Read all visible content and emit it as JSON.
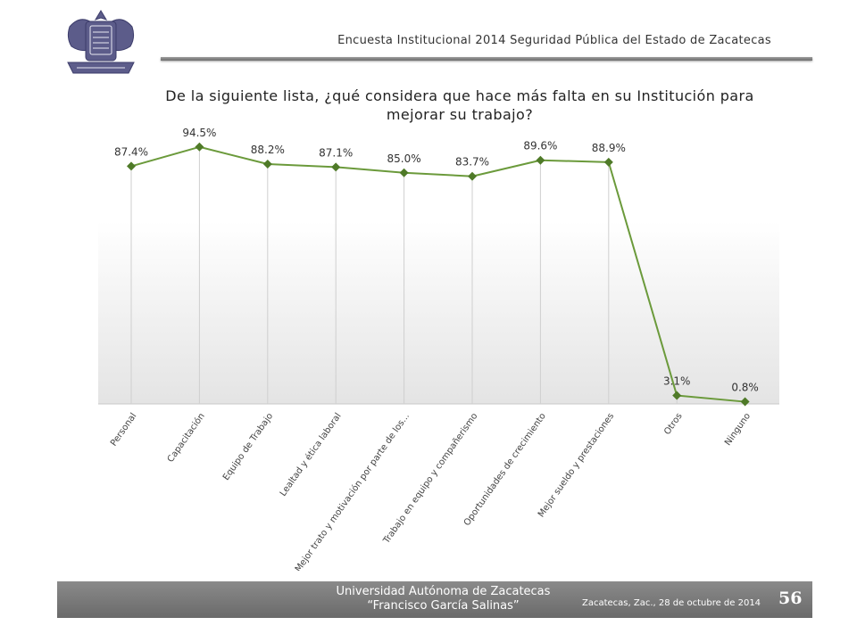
{
  "header": {
    "title": "Encuesta Institucional 2014 Seguridad Pública del Estado de Zacatecas"
  },
  "question": "De la siguiente lista, ¿qué considera que hace más falta en su Institución para mejorar su trabajo?",
  "chart_data": {
    "type": "line",
    "categories": [
      "Personal",
      "Capacitación",
      "Equipo de Trabajo",
      "Lealtad y ética laboral",
      "Mejor trato y motivación por parte de los...",
      "Trabajo en equipo y compañerismo",
      "Oportunidades de crecimiento",
      "Mejor sueldo y prestaciones",
      "Otros",
      "Ninguno"
    ],
    "values": [
      87.4,
      94.5,
      88.2,
      87.1,
      85.0,
      83.7,
      89.6,
      88.9,
      3.1,
      0.8
    ],
    "data_labels": [
      "87.4%",
      "94.5%",
      "88.2%",
      "87.1%",
      "85.0%",
      "83.7%",
      "89.6%",
      "88.9%",
      "3.1%",
      "0.8%"
    ],
    "title": "",
    "xlabel": "",
    "ylabel": "",
    "ylim": [
      0,
      100
    ],
    "series_color": "#6b9a3b",
    "marker_color": "#4f7a28",
    "grid": "vertical"
  },
  "footer": {
    "university": "Universidad Autónoma de Zacatecas",
    "subtitle": "“Francisco García Salinas”",
    "date": "Zacatecas, Zac., 28 de octubre de 2014",
    "page_number": "56"
  }
}
